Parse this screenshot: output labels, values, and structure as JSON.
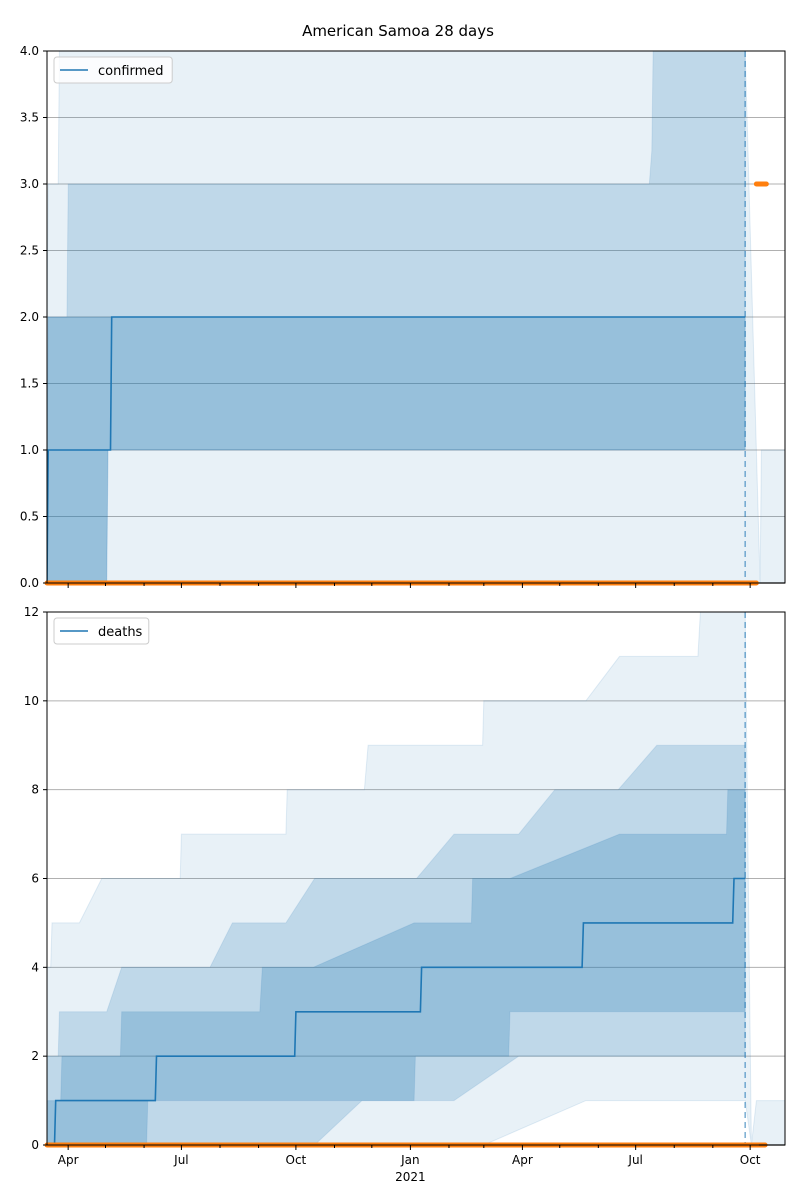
{
  "figure_title": "American Samoa 28 days",
  "colors": {
    "line": "#1f77b4",
    "band": "#1f77b4",
    "observed": "#ff7f0e",
    "grid": "#b0b0b0"
  },
  "chart_data": [
    {
      "type": "line",
      "panel": "top",
      "legend": [
        "confirmed"
      ],
      "legend_position": "top-left",
      "xlim": [
        "2020-03-15",
        "2021-10-29"
      ],
      "ylim": [
        0,
        4
      ],
      "yticks": [
        0,
        0.5,
        1,
        1.5,
        2,
        2.5,
        3,
        3.5,
        4
      ],
      "ytick_labels": [
        "0.0",
        "0.5",
        "1.0",
        "1.5",
        "2.0",
        "2.5",
        "3.0",
        "3.5",
        "4.0"
      ],
      "grid": "horizontal",
      "cutoff_date": "2021-09-27",
      "series": [
        {
          "name": "confirmed",
          "style": "step",
          "x": [
            "2020-03-15",
            "2020-03-16",
            "2020-05-05",
            "2020-05-06",
            "2021-09-27"
          ],
          "y": [
            0,
            1,
            1,
            2,
            2
          ]
        }
      ],
      "bands": [
        {
          "opacity": 0.1,
          "x": [
            "2020-03-15",
            "2020-03-16",
            "2020-03-24",
            "2020-03-25",
            "2021-09-27",
            "2021-10-09",
            "2021-10-10",
            "2021-10-29"
          ],
          "lower": [
            0,
            0,
            0,
            0,
            0,
            0,
            0,
            0
          ],
          "upper": [
            2,
            3,
            3,
            4,
            4,
            0,
            1,
            1
          ]
        },
        {
          "opacity": 0.2,
          "x": [
            "2020-03-15",
            "2020-03-31",
            "2020-04-01",
            "2020-05-02",
            "2020-05-03",
            "2021-07-12",
            "2021-07-14",
            "2021-07-15",
            "2021-09-27"
          ],
          "lower": [
            0,
            0,
            0,
            0,
            1,
            1,
            1,
            1,
            1
          ],
          "upper": [
            2,
            2,
            3,
            3,
            3,
            3,
            3.25,
            4,
            4
          ]
        },
        {
          "opacity": 0.25,
          "x": [
            "2020-03-15",
            "2020-03-16",
            "2020-05-02",
            "2020-05-03",
            "2021-09-27"
          ],
          "lower": [
            0,
            0,
            0,
            1,
            1
          ],
          "upper": [
            1,
            2,
            2,
            2,
            2
          ]
        }
      ],
      "observed": [
        {
          "x": [
            "2020-03-15",
            "2021-10-06"
          ],
          "y": [
            0,
            0
          ]
        },
        {
          "x": [
            "2021-10-06",
            "2021-10-14"
          ],
          "y": [
            3,
            3
          ]
        },
        {
          "x": [
            "2021-10-08",
            "2021-10-29"
          ],
          "y": [
            0,
            0
          ],
          "style": "thin"
        }
      ]
    },
    {
      "type": "line",
      "panel": "bottom",
      "legend": [
        "deaths"
      ],
      "legend_position": "top-left",
      "xlim": [
        "2020-03-15",
        "2021-10-29"
      ],
      "ylim": [
        0,
        12
      ],
      "yticks": [
        0,
        2,
        4,
        6,
        8,
        10,
        12
      ],
      "ytick_labels": [
        "0",
        "2",
        "4",
        "6",
        "8",
        "10",
        "12"
      ],
      "grid": "horizontal",
      "cutoff_date": "2021-09-27",
      "xtick_labels": [
        "Apr",
        "Jul",
        "Oct",
        "Jan",
        "Apr",
        "Jul",
        "Oct"
      ],
      "xtick_dates": [
        "2020-04-01",
        "2020-07-01",
        "2020-10-01",
        "2021-01-01",
        "2021-04-01",
        "2021-07-01",
        "2021-10-01"
      ],
      "year_label": "2021",
      "series": [
        {
          "name": "deaths",
          "style": "step",
          "x": [
            "2020-03-15",
            "2020-03-21",
            "2020-03-22",
            "2020-06-10",
            "2020-06-11",
            "2020-09-30",
            "2020-10-01",
            "2021-01-09",
            "2021-01-10",
            "2021-05-19",
            "2021-05-20",
            "2021-09-17",
            "2021-09-18",
            "2021-09-27"
          ],
          "y": [
            0,
            0,
            1,
            1,
            2,
            2,
            3,
            3,
            4,
            4,
            5,
            5,
            6,
            6
          ]
        }
      ],
      "bands": [
        {
          "opacity": 0.1,
          "x": [
            "2020-03-15",
            "2020-03-18",
            "2020-03-19",
            "2020-04-08",
            "2020-04-10",
            "2020-04-28",
            "2020-05-01",
            "2020-05-26",
            "2020-06-30",
            "2020-07-01",
            "2020-08-25",
            "2020-09-23",
            "2020-09-24",
            "2020-11-03",
            "2020-11-25",
            "2020-11-28",
            "2021-02-17",
            "2021-02-28",
            "2021-03-01",
            "2021-05-22",
            "2021-06-18",
            "2021-06-20",
            "2021-08-20",
            "2021-08-22",
            "2021-09-27",
            "2021-10-02",
            "2021-10-06",
            "2021-10-29"
          ],
          "lower": [
            0,
            0,
            0,
            0,
            0,
            0,
            0,
            0,
            0,
            0,
            0,
            0,
            0,
            0,
            0,
            0,
            0,
            0,
            0,
            1,
            1,
            1,
            1,
            1,
            1,
            0,
            0,
            0
          ],
          "upper": [
            4,
            4,
            5,
            5,
            5,
            6,
            6,
            6,
            6,
            7,
            7,
            7,
            8,
            8,
            8,
            9,
            9,
            9,
            10,
            10,
            11,
            11,
            11,
            12,
            12,
            0,
            1,
            1
          ]
        },
        {
          "opacity": 0.2,
          "x": [
            "2020-03-15",
            "2020-03-24",
            "2020-03-25",
            "2020-04-29",
            "2020-05-02",
            "2020-05-14",
            "2020-06-05",
            "2020-07-24",
            "2020-08-11",
            "2020-09-23",
            "2020-10-16",
            "2020-11-23",
            "2021-01-06",
            "2021-02-05",
            "2021-03-29",
            "2021-04-27",
            "2021-05-22",
            "2021-06-17",
            "2021-07-18",
            "2021-08-26",
            "2021-09-26",
            "2021-09-27"
          ],
          "lower": [
            0,
            0,
            0,
            0,
            0,
            0,
            0,
            0,
            0,
            0,
            0,
            1,
            1,
            1,
            2,
            2,
            2,
            2,
            2,
            2,
            2,
            2
          ],
          "upper": [
            2,
            2,
            3,
            3,
            3,
            4,
            4,
            4,
            5,
            5,
            6,
            6,
            6,
            7,
            7,
            8,
            8,
            8,
            9,
            9,
            9,
            9
          ]
        },
        {
          "opacity": 0.25,
          "x": [
            "2020-03-15",
            "2020-03-26",
            "2020-03-27",
            "2020-05-13",
            "2020-05-14",
            "2020-06-03",
            "2020-06-04",
            "2020-09-02",
            "2020-09-04",
            "2020-10-14",
            "2020-10-15",
            "2021-01-04",
            "2021-01-05",
            "2021-02-19",
            "2021-02-20",
            "2021-03-21",
            "2021-03-22",
            "2021-06-18",
            "2021-06-19",
            "2021-09-12",
            "2021-09-13",
            "2021-09-27"
          ],
          "lower": [
            0,
            0,
            0,
            0,
            0,
            0,
            1,
            1,
            1,
            1,
            1,
            1,
            2,
            2,
            2,
            2,
            3,
            3,
            3,
            3,
            3,
            3
          ],
          "upper": [
            1,
            1,
            2,
            2,
            3,
            3,
            3,
            3,
            4,
            4,
            4,
            5,
            5,
            5,
            6,
            6,
            6,
            7,
            7,
            7,
            8,
            8
          ]
        }
      ],
      "observed": [
        {
          "x": [
            "2020-03-15",
            "2021-10-13"
          ],
          "y": [
            0,
            0
          ]
        },
        {
          "x": [
            "2021-10-08",
            "2021-10-29"
          ],
          "y": [
            0,
            0
          ],
          "style": "thin"
        }
      ]
    }
  ]
}
